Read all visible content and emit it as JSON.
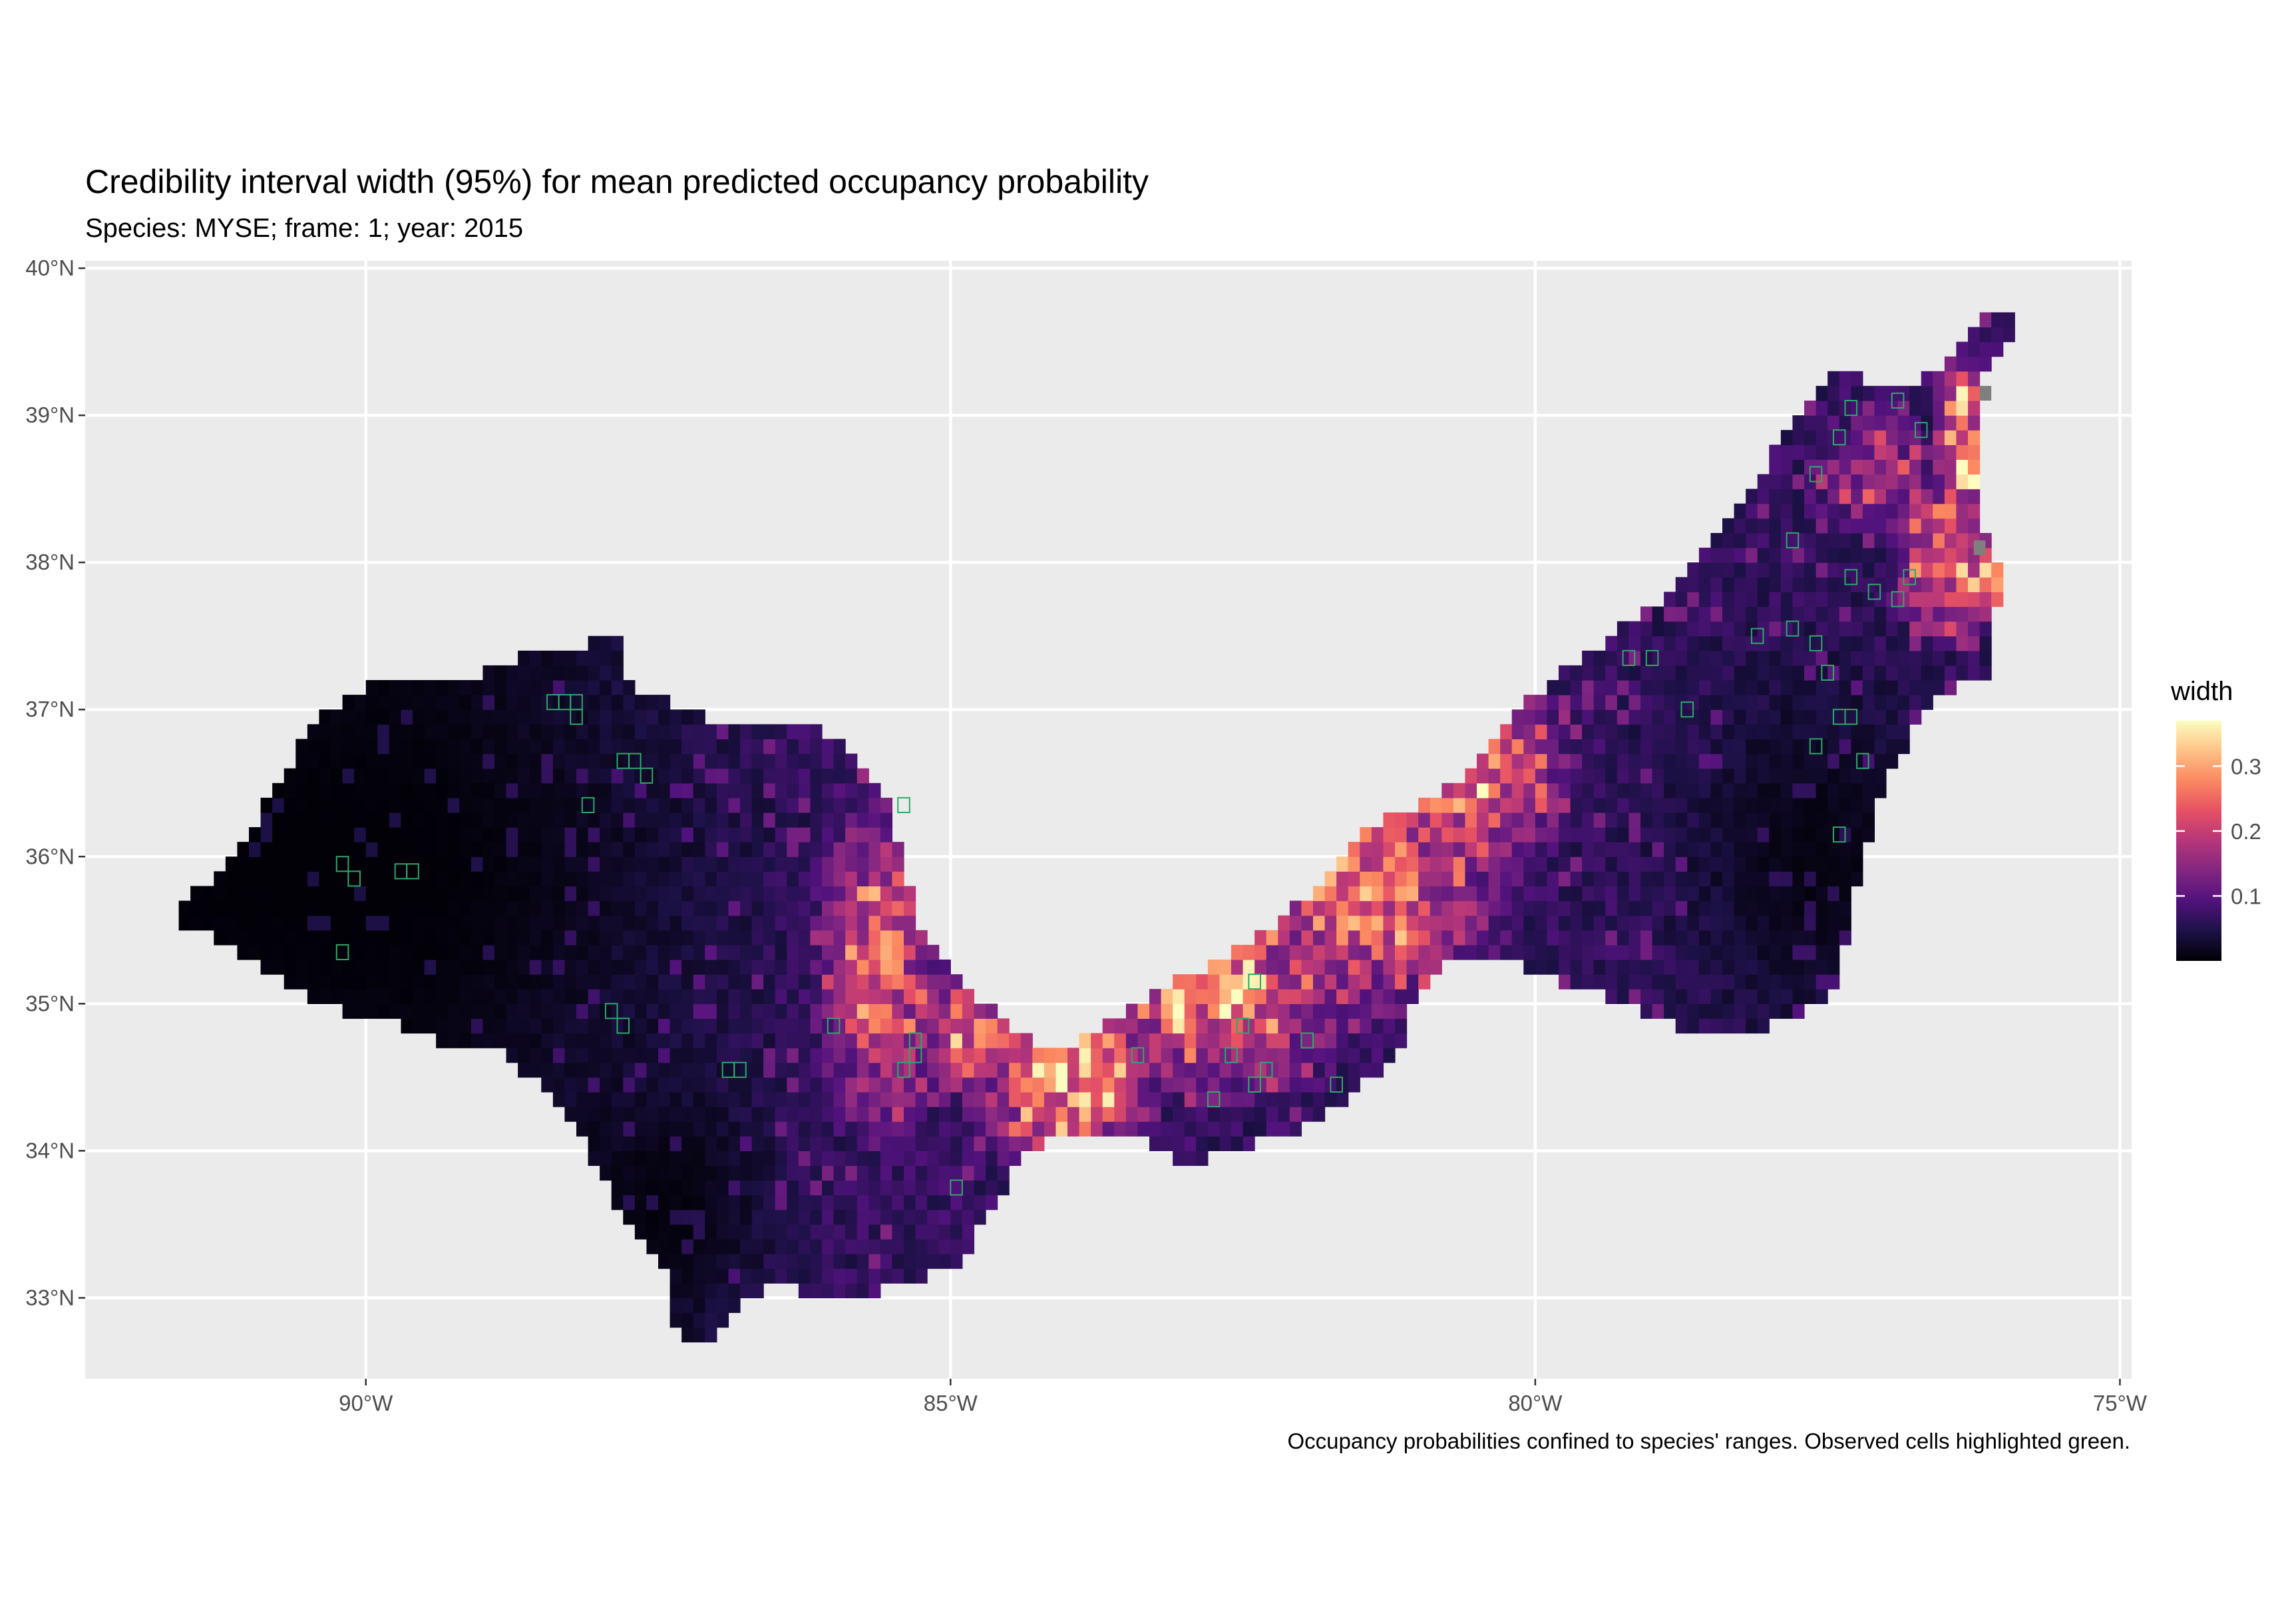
{
  "title": "Credibility interval width (95%) for mean predicted occupancy probability",
  "subtitle": "Species: MYSE; frame: 1; year: 2015",
  "caption": "Occupancy probabilities confined to species' ranges. Observed cells highlighted green.",
  "legend": {
    "title": "width",
    "breaks": [
      "0.1",
      "0.2",
      "0.3"
    ],
    "break_values": [
      0.1,
      0.2,
      0.3
    ],
    "range": [
      0.0,
      0.37
    ],
    "colors": [
      "#000004",
      "#1d1147",
      "#51127c",
      "#822681",
      "#b63679",
      "#e65164",
      "#fb8861",
      "#fec287",
      "#fcfdbf"
    ]
  },
  "axes": {
    "x_ticks": [
      "90°W",
      "85°W",
      "80°W",
      "75°W"
    ],
    "x_tick_values": [
      -90,
      -85,
      -80,
      -75
    ],
    "y_ticks": [
      "33°N",
      "34°N",
      "35°N",
      "36°N",
      "37°N",
      "38°N",
      "39°N",
      "40°N"
    ],
    "y_tick_values": [
      33,
      34,
      35,
      36,
      37,
      38,
      39,
      40
    ],
    "lon_range": [
      -92.4,
      -74.9
    ],
    "lat_range": [
      32.45,
      40.05
    ]
  },
  "colors": {
    "panel_background": "#ebebeb",
    "gridline": "#ffffff",
    "observed_cell_outline": "#2ea86a",
    "missing_cell": "#7f7f7f"
  },
  "map": {
    "cell_size_deg": 0.1,
    "region_outline": [
      [
        -91.55,
        35.7
      ],
      [
        -91.2,
        35.9
      ],
      [
        -90.9,
        36.3
      ],
      [
        -90.6,
        36.7
      ],
      [
        -90.4,
        37.0
      ],
      [
        -90.1,
        37.1
      ],
      [
        -89.7,
        37.25
      ],
      [
        -89.1,
        37.2
      ],
      [
        -88.7,
        37.35
      ],
      [
        -88.3,
        37.4
      ],
      [
        -88.0,
        37.5
      ],
      [
        -87.85,
        37.48
      ],
      [
        -87.8,
        37.2
      ],
      [
        -87.3,
        37.0
      ],
      [
        -86.8,
        36.9
      ],
      [
        -86.1,
        36.85
      ],
      [
        -85.95,
        36.75
      ],
      [
        -85.7,
        36.5
      ],
      [
        -85.5,
        36.3
      ],
      [
        -85.35,
        35.8
      ],
      [
        -85.35,
        35.55
      ],
      [
        -85.1,
        35.4
      ],
      [
        -84.9,
        35.1
      ],
      [
        -84.55,
        34.9
      ],
      [
        -84.2,
        34.7
      ],
      [
        -83.9,
        34.75
      ],
      [
        -83.5,
        34.95
      ],
      [
        -83.1,
        35.15
      ],
      [
        -82.6,
        35.35
      ],
      [
        -82.15,
        35.6
      ],
      [
        -81.75,
        35.9
      ],
      [
        -81.4,
        36.2
      ],
      [
        -81.0,
        36.35
      ],
      [
        -80.6,
        36.55
      ],
      [
        -80.2,
        36.95
      ],
      [
        -79.8,
        37.25
      ],
      [
        -79.35,
        37.5
      ],
      [
        -79.0,
        37.7
      ],
      [
        -78.6,
        38.1
      ],
      [
        -78.2,
        38.45
      ],
      [
        -77.9,
        38.85
      ],
      [
        -77.55,
        39.25
      ],
      [
        -77.35,
        39.3
      ],
      [
        -76.9,
        39.15
      ],
      [
        -76.6,
        39.3
      ],
      [
        -76.35,
        39.55
      ],
      [
        -76.1,
        39.7
      ],
      [
        -75.85,
        39.7
      ],
      [
        -75.95,
        39.55
      ],
      [
        -76.25,
        39.25
      ],
      [
        -76.2,
        38.7
      ],
      [
        -76.15,
        38.2
      ],
      [
        -76.0,
        37.9
      ],
      [
        -76.1,
        37.6
      ],
      [
        -76.15,
        37.25
      ],
      [
        -76.45,
        37.15
      ],
      [
        -76.65,
        37.05
      ],
      [
        -76.85,
        36.75
      ],
      [
        -77.0,
        36.5
      ],
      [
        -77.15,
        36.15
      ],
      [
        -77.3,
        35.6
      ],
      [
        -77.5,
        35.0
      ],
      [
        -78.0,
        34.85
      ],
      [
        -78.4,
        34.75
      ],
      [
        -78.85,
        34.85
      ],
      [
        -79.2,
        35.0
      ],
      [
        -79.7,
        35.1
      ],
      [
        -80.3,
        35.35
      ],
      [
        -80.8,
        35.25
      ],
      [
        -81.1,
        34.95
      ],
      [
        -81.1,
        34.75
      ],
      [
        -81.4,
        34.5
      ],
      [
        -81.6,
        34.35
      ],
      [
        -81.9,
        34.2
      ],
      [
        -82.2,
        34.1
      ],
      [
        -82.6,
        34.0
      ],
      [
        -82.95,
        33.9
      ],
      [
        -83.3,
        34.05
      ],
      [
        -83.5,
        34.1
      ],
      [
        -83.8,
        34.15
      ],
      [
        -84.15,
        34.1
      ],
      [
        -84.4,
        33.95
      ],
      [
        -84.55,
        33.75
      ],
      [
        -84.8,
        33.5
      ],
      [
        -84.9,
        33.2
      ],
      [
        -85.2,
        33.15
      ],
      [
        -85.6,
        33.05
      ],
      [
        -86.1,
        33.02
      ],
      [
        -86.55,
        33.1
      ],
      [
        -86.9,
        32.9
      ],
      [
        -87.0,
        32.75
      ],
      [
        -87.35,
        32.75
      ],
      [
        -87.45,
        33.2
      ],
      [
        -87.9,
        33.7
      ],
      [
        -88.15,
        34.1
      ],
      [
        -88.45,
        34.4
      ],
      [
        -88.9,
        34.7
      ],
      [
        -89.3,
        34.7
      ],
      [
        -89.7,
        34.85
      ],
      [
        -90.4,
        35.0
      ],
      [
        -90.8,
        35.2
      ],
      [
        -91.2,
        35.4
      ],
      [
        -91.55,
        35.55
      ]
    ],
    "hotspots": [
      [
        -84.0,
        34.55,
        0.8,
        0.7,
        0.3
      ],
      [
        -82.7,
        35.1,
        1.2,
        0.8,
        0.25
      ],
      [
        -83.0,
        35.0,
        0.3,
        0.25,
        0.34
      ],
      [
        -81.5,
        35.8,
        1.3,
        0.9,
        0.26
      ],
      [
        -80.6,
        36.6,
        0.9,
        0.7,
        0.28
      ],
      [
        -85.6,
        35.3,
        0.6,
        1.3,
        0.24
      ],
      [
        -84.8,
        34.8,
        0.5,
        0.5,
        0.25
      ],
      [
        -76.5,
        38.0,
        0.5,
        0.6,
        0.25
      ],
      [
        -76.3,
        38.7,
        0.25,
        0.3,
        0.37
      ],
      [
        -76.1,
        37.9,
        0.3,
        0.3,
        0.29
      ],
      [
        -76.3,
        39.1,
        0.3,
        0.3,
        0.29
      ],
      [
        -77.1,
        38.6,
        0.7,
        0.5,
        0.17
      ]
    ],
    "dark_cores": [
      [
        -90.2,
        35.9,
        2.8,
        1.1
      ],
      [
        -87.4,
        33.6,
        0.9,
        0.9
      ],
      [
        -77.6,
        36.0,
        1.2,
        1.3
      ]
    ],
    "observed_cells": [
      [
        -90.25,
        35.9
      ],
      [
        -90.15,
        35.8
      ],
      [
        -89.75,
        35.85
      ],
      [
        -89.65,
        35.85
      ],
      [
        -90.25,
        35.3
      ],
      [
        -88.35,
        37.0
      ],
      [
        -88.25,
        36.9
      ],
      [
        -88.45,
        37.0
      ],
      [
        -88.25,
        37.0
      ],
      [
        -87.85,
        36.6
      ],
      [
        -87.65,
        36.5
      ],
      [
        -87.75,
        36.6
      ],
      [
        -88.15,
        36.3
      ],
      [
        -87.95,
        34.9
      ],
      [
        -87.85,
        34.8
      ],
      [
        -86.95,
        34.5
      ],
      [
        -86.85,
        34.5
      ],
      [
        -85.45,
        36.3
      ],
      [
        -86.05,
        34.8
      ],
      [
        -85.35,
        34.7
      ],
      [
        -85.35,
        34.6
      ],
      [
        -85.45,
        34.5
      ],
      [
        -85.0,
        33.7
      ],
      [
        -83.45,
        34.6
      ],
      [
        -82.8,
        34.3
      ],
      [
        -82.45,
        34.4
      ],
      [
        -82.35,
        34.5
      ],
      [
        -82.65,
        34.6
      ],
      [
        -82.55,
        34.8
      ],
      [
        -82.45,
        35.1
      ],
      [
        -82.0,
        34.7
      ],
      [
        -81.75,
        34.4
      ],
      [
        -79.05,
        37.3
      ],
      [
        -79.25,
        37.3
      ],
      [
        -78.75,
        36.95
      ],
      [
        -78.15,
        37.45
      ],
      [
        -77.85,
        37.5
      ],
      [
        -77.65,
        37.4
      ],
      [
        -77.35,
        37.85
      ],
      [
        -77.15,
        37.75
      ],
      [
        -76.95,
        37.7
      ],
      [
        -77.45,
        38.8
      ],
      [
        -77.65,
        38.55
      ],
      [
        -77.35,
        39.0
      ],
      [
        -76.95,
        39.05
      ],
      [
        -76.75,
        38.85
      ],
      [
        -77.45,
        36.9
      ],
      [
        -77.55,
        37.2
      ],
      [
        -77.35,
        36.9
      ],
      [
        -77.85,
        38.1
      ],
      [
        -76.85,
        37.85
      ],
      [
        -77.45,
        36.1
      ],
      [
        -77.65,
        36.7
      ],
      [
        -77.25,
        36.6
      ]
    ],
    "missing_cells": [
      [
        -76.25,
        38.05
      ],
      [
        -76.2,
        39.1
      ]
    ]
  }
}
